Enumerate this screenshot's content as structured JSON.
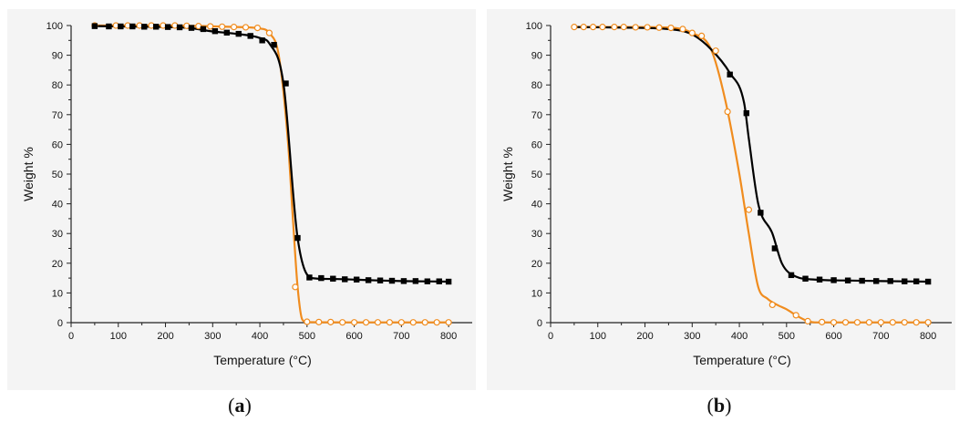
{
  "colors": {
    "series1": "#000000",
    "series2": "#f08c1e",
    "axis": "#222222"
  },
  "charts": [
    {
      "caption_open": "(",
      "caption_letter": "a",
      "caption_close": ")",
      "chart_data": {
        "type": "line",
        "xlabel": "Temperature (°C)",
        "ylabel": "Weight %",
        "xlim": [
          0,
          850
        ],
        "ylim": [
          0,
          100
        ],
        "xticks": [
          0,
          100,
          200,
          300,
          400,
          500,
          600,
          700,
          800
        ],
        "yticks": [
          0,
          10,
          20,
          30,
          40,
          50,
          60,
          70,
          80,
          90,
          100
        ],
        "grid": false,
        "legend": "none",
        "series": [
          {
            "color": "#000000",
            "marker": "filled-square",
            "dash": false,
            "x": [
              50,
              100,
              150,
              200,
              250,
              300,
              350,
              400,
              420,
              450,
              480,
              510,
              550,
              600,
              650,
              700,
              750,
              800
            ],
            "y": [
              99.8,
              99.7,
              99.6,
              99.5,
              99.2,
              98.0,
              97.2,
              95.8,
              94.0,
              80.5,
              28.5,
              15.0,
              14.7,
              14.5,
              14.2,
              14.0,
              13.9,
              13.8
            ],
            "markers_x": [
              50,
              80,
              105,
              130,
              155,
              180,
              205,
              230,
              255,
              280,
              305,
              330,
              355,
              380,
              405,
              430,
              455,
              480,
              505,
              530,
              555,
              580,
              605,
              630,
              655,
              680,
              705,
              730,
              755,
              780,
              800
            ],
            "markers_y": [
              99.8,
              99.7,
              99.7,
              99.7,
              99.6,
              99.6,
              99.5,
              99.4,
              99.2,
              98.8,
              98.1,
              97.6,
              97.2,
              96.5,
              95.0,
              93.5,
              80.5,
              28.5,
              15.2,
              15.0,
              14.8,
              14.6,
              14.5,
              14.3,
              14.2,
              14.1,
              14.0,
              14.0,
              13.9,
              13.9,
              13.8
            ]
          },
          {
            "color": "#f08c1e",
            "marker": "open-circle",
            "dash": false,
            "x": [
              50,
              100,
              200,
              280,
              350,
              400,
              420,
              440,
              460,
              470,
              480,
              490,
              500,
              600,
              700,
              800
            ],
            "y": [
              100,
              100,
              100,
              99.8,
              99.5,
              99.0,
              97.5,
              90.0,
              60.0,
              35.0,
              12.0,
              1.0,
              0.2,
              0.1,
              0.1,
              0.1
            ],
            "markers_x": [
              50,
              95,
              120,
              145,
              170,
              195,
              220,
              245,
              270,
              295,
              320,
              345,
              370,
              395,
              420,
              475,
              500,
              525,
              550,
              575,
              600,
              625,
              650,
              675,
              700,
              725,
              750,
              775,
              800
            ],
            "markers_y": [
              100,
              100,
              100,
              100,
              100,
              100,
              100,
              99.9,
              99.8,
              99.7,
              99.6,
              99.5,
              99.4,
              99.2,
              97.5,
              12.0,
              0.3,
              0.2,
              0.2,
              0.1,
              0.1,
              0.1,
              0.1,
              0.1,
              0.1,
              0.1,
              0.1,
              0.1,
              0.1
            ]
          }
        ]
      }
    },
    {
      "caption_open": "(",
      "caption_letter": "b",
      "caption_close": ")",
      "chart_data": {
        "type": "line",
        "xlabel": "Temperature (°C)",
        "ylabel": "Weight %",
        "xlim": [
          0,
          850
        ],
        "ylim": [
          0,
          100
        ],
        "xticks": [
          0,
          100,
          200,
          300,
          400,
          500,
          600,
          700,
          800
        ],
        "yticks": [
          0,
          10,
          20,
          30,
          40,
          50,
          60,
          70,
          80,
          90,
          100
        ],
        "grid": false,
        "legend": "none",
        "series": [
          {
            "color": "#000000",
            "marker": "filled-square",
            "dash": false,
            "x": [
              50,
              150,
              250,
              300,
              340,
              380,
              410,
              420,
              440,
              470,
              490,
              520,
              560,
              620,
              700,
              800
            ],
            "y": [
              99.5,
              99.3,
              98.8,
              97.0,
              92.0,
              84.0,
              74.0,
              62.0,
              40.0,
              30.0,
              20.0,
              15.5,
              14.5,
              14.2,
              14.0,
              13.8
            ],
            "markers_x": [
              380,
              415,
              445,
              475,
              510,
              540,
              570,
              600,
              630,
              660,
              690,
              720,
              750,
              775,
              800
            ],
            "markers_y": [
              83.5,
              70.5,
              37.0,
              25.0,
              16.0,
              14.8,
              14.5,
              14.3,
              14.2,
              14.1,
              14.0,
              14.0,
              13.9,
              13.9,
              13.8
            ]
          },
          {
            "color": "#f08c1e",
            "marker": "open-circle",
            "dash": false,
            "x": [
              50,
              150,
              250,
              300,
              340,
              370,
              400,
              420,
              440,
              460,
              480,
              500,
              520,
              545,
              560,
              800
            ],
            "y": [
              99.5,
              99.5,
              99.3,
              97.5,
              92.0,
              75.0,
              50.0,
              30.0,
              12.0,
              8.0,
              6.0,
              4.5,
              2.5,
              0.5,
              0.1,
              0.1
            ],
            "markers_x": [
              50,
              70,
              90,
              110,
              135,
              155,
              180,
              205,
              230,
              255,
              280,
              300,
              320,
              350,
              375,
              420,
              470,
              520,
              545,
              575,
              600,
              625,
              650,
              675,
              700,
              725,
              750,
              775,
              800
            ],
            "markers_y": [
              99.5,
              99.5,
              99.5,
              99.5,
              99.5,
              99.5,
              99.4,
              99.4,
              99.3,
              99.2,
              98.8,
              97.5,
              96.5,
              91.5,
              71.0,
              38.0,
              6.0,
              2.5,
              0.5,
              0.2,
              0.1,
              0.1,
              0.1,
              0.1,
              0.1,
              0.1,
              0.1,
              0.1,
              0.1
            ]
          }
        ]
      }
    }
  ]
}
